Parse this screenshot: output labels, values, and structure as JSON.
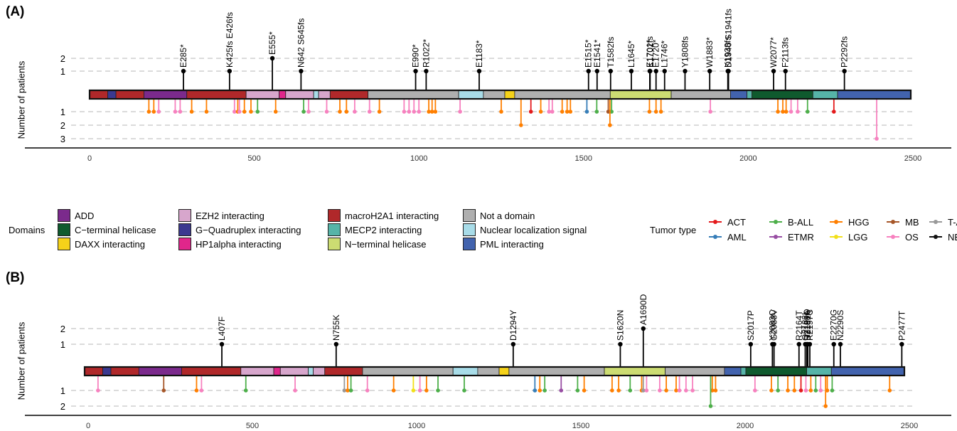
{
  "panels": [
    {
      "label": "(A)",
      "ylabel": "Number of patients",
      "x_ticks": [
        0,
        500,
        1000,
        1500,
        2000,
        2500
      ],
      "up_ticks": [
        1,
        2
      ],
      "down_ticks": [
        1,
        2,
        3
      ],
      "chart_data": {
        "type": "lollipop",
        "xlim": [
          -40,
          2550
        ],
        "above": [
          {
            "pos": 285,
            "n": 1,
            "label": "E285*"
          },
          {
            "pos": 425,
            "n": 1,
            "label": "K425fs E426fs"
          },
          {
            "pos": 555,
            "n": 2,
            "label": "E555*"
          },
          {
            "pos": 642,
            "n": 1,
            "label": "N642 S645fs"
          },
          {
            "pos": 990,
            "n": 1,
            "label": "E990*"
          },
          {
            "pos": 1022,
            "n": 1,
            "label": "R1022*"
          },
          {
            "pos": 1183,
            "n": 1,
            "label": "E1183*"
          },
          {
            "pos": 1515,
            "n": 1,
            "label": "E1515*"
          },
          {
            "pos": 1541,
            "n": 1,
            "label": "E1541*"
          },
          {
            "pos": 1582,
            "n": 1,
            "label": "T1582fs"
          },
          {
            "pos": 1645,
            "n": 1,
            "label": "L1645*"
          },
          {
            "pos": 1701,
            "n": 1,
            "label": "E1701fs"
          },
          {
            "pos": 1702,
            "n": 1,
            "label": "K1702*"
          },
          {
            "pos": 1720,
            "n": 1,
            "label": "E1720*"
          },
          {
            "pos": 1746,
            "n": 1,
            "label": "L1746*"
          },
          {
            "pos": 1808,
            "n": 1,
            "label": "Y1808fs"
          },
          {
            "pos": 1883,
            "n": 1,
            "label": "W1883*"
          },
          {
            "pos": 1938,
            "n": 1,
            "label": "K1938fs"
          },
          {
            "pos": 1940,
            "n": 1,
            "label": "D1940 S1941fs"
          },
          {
            "pos": 2077,
            "n": 1,
            "label": "W2077*"
          },
          {
            "pos": 2113,
            "n": 1,
            "label": "F2113fs"
          },
          {
            "pos": 2292,
            "n": 1,
            "label": "P2292fs"
          }
        ],
        "below": [
          {
            "pos": 180,
            "n": 1,
            "t": "HGG"
          },
          {
            "pos": 195,
            "n": 1,
            "t": "HGG"
          },
          {
            "pos": 210,
            "n": 1,
            "t": "OS"
          },
          {
            "pos": 260,
            "n": 1,
            "t": "OS"
          },
          {
            "pos": 275,
            "n": 1,
            "t": "OS"
          },
          {
            "pos": 310,
            "n": 1,
            "t": "HGG"
          },
          {
            "pos": 355,
            "n": 1,
            "t": "HGG"
          },
          {
            "pos": 440,
            "n": 1,
            "t": "OS"
          },
          {
            "pos": 450,
            "n": 1,
            "t": "HGG"
          },
          {
            "pos": 455,
            "n": 1,
            "t": "OS"
          },
          {
            "pos": 470,
            "n": 1,
            "t": "HGG"
          },
          {
            "pos": 490,
            "n": 1,
            "t": "HGG"
          },
          {
            "pos": 510,
            "n": 1,
            "t": "B-ALL"
          },
          {
            "pos": 565,
            "n": 1,
            "t": "HGG"
          },
          {
            "pos": 650,
            "n": 1,
            "t": "B-ALL"
          },
          {
            "pos": 665,
            "n": 1,
            "t": "OS"
          },
          {
            "pos": 720,
            "n": 1,
            "t": "OS"
          },
          {
            "pos": 760,
            "n": 1,
            "t": "HGG"
          },
          {
            "pos": 780,
            "n": 1,
            "t": "HGG"
          },
          {
            "pos": 805,
            "n": 1,
            "t": "OS"
          },
          {
            "pos": 850,
            "n": 1,
            "t": "OS"
          },
          {
            "pos": 880,
            "n": 1,
            "t": "HGG"
          },
          {
            "pos": 955,
            "n": 1,
            "t": "OS"
          },
          {
            "pos": 970,
            "n": 1,
            "t": "OS"
          },
          {
            "pos": 985,
            "n": 1,
            "t": "OS"
          },
          {
            "pos": 1000,
            "n": 1,
            "t": "OS"
          },
          {
            "pos": 1030,
            "n": 1,
            "t": "HGG"
          },
          {
            "pos": 1040,
            "n": 1,
            "t": "HGG"
          },
          {
            "pos": 1050,
            "n": 1,
            "t": "HGG"
          },
          {
            "pos": 1125,
            "n": 1,
            "t": "OS"
          },
          {
            "pos": 1250,
            "n": 1,
            "t": "HGG"
          },
          {
            "pos": 1310,
            "n": 2,
            "t": "HGG"
          },
          {
            "pos": 1340,
            "n": 1,
            "t": "ACT"
          },
          {
            "pos": 1370,
            "n": 1,
            "t": "HGG"
          },
          {
            "pos": 1395,
            "n": 1,
            "t": "OS"
          },
          {
            "pos": 1405,
            "n": 1,
            "t": "OS"
          },
          {
            "pos": 1435,
            "n": 1,
            "t": "HGG"
          },
          {
            "pos": 1450,
            "n": 1,
            "t": "HGG"
          },
          {
            "pos": 1460,
            "n": 1,
            "t": "HGG"
          },
          {
            "pos": 1510,
            "n": 1,
            "t": "AML"
          },
          {
            "pos": 1540,
            "n": 1,
            "t": "B-ALL"
          },
          {
            "pos": 1575,
            "n": 1,
            "t": "MB"
          },
          {
            "pos": 1585,
            "n": 1,
            "t": "B-ALL"
          },
          {
            "pos": 1580,
            "n": 2,
            "t": "HGG"
          },
          {
            "pos": 1700,
            "n": 1,
            "t": "HGG"
          },
          {
            "pos": 1720,
            "n": 1,
            "t": "HGG"
          },
          {
            "pos": 1735,
            "n": 1,
            "t": "HGG"
          },
          {
            "pos": 1885,
            "n": 1,
            "t": "OS"
          },
          {
            "pos": 2090,
            "n": 1,
            "t": "HGG"
          },
          {
            "pos": 2105,
            "n": 1,
            "t": "HGG"
          },
          {
            "pos": 2115,
            "n": 1,
            "t": "HGG"
          },
          {
            "pos": 2130,
            "n": 1,
            "t": "OS"
          },
          {
            "pos": 2150,
            "n": 1,
            "t": "OS"
          },
          {
            "pos": 2180,
            "n": 1,
            "t": "B-ALL"
          },
          {
            "pos": 2260,
            "n": 1,
            "t": "ACT"
          },
          {
            "pos": 2390,
            "n": 3,
            "t": "OS"
          }
        ]
      }
    },
    {
      "label": "(B)",
      "ylabel": "Number of patients",
      "x_ticks": [
        0,
        500,
        1000,
        1500,
        2000,
        2500
      ],
      "up_ticks": [
        1,
        2
      ],
      "down_ticks": [
        1,
        2
      ],
      "chart_data": {
        "type": "lollipop",
        "xlim": [
          -80,
          2560
        ],
        "above": [
          {
            "pos": 407,
            "n": 1,
            "label": "L407F"
          },
          {
            "pos": 755,
            "n": 1,
            "label": "N755K"
          },
          {
            "pos": 1294,
            "n": 1,
            "label": "D1294Y"
          },
          {
            "pos": 1620,
            "n": 1,
            "label": "S1620N"
          },
          {
            "pos": 1690,
            "n": 2,
            "label": "A1690D"
          },
          {
            "pos": 2017,
            "n": 1,
            "label": "S2017P"
          },
          {
            "pos": 2083,
            "n": 1,
            "label": "Y2083C"
          },
          {
            "pos": 2088,
            "n": 1,
            "label": "G2088V"
          },
          {
            "pos": 2164,
            "n": 1,
            "label": "R2164T"
          },
          {
            "pos": 2183,
            "n": 1,
            "label": "Q2183L"
          },
          {
            "pos": 2188,
            "n": 1,
            "label": "R2188Q"
          },
          {
            "pos": 2191,
            "n": 1,
            "label": "D2191A"
          },
          {
            "pos": 2197,
            "n": 1,
            "label": "R2197C"
          },
          {
            "pos": 2270,
            "n": 1,
            "label": "E2270G"
          },
          {
            "pos": 2290,
            "n": 1,
            "label": "N2290S"
          },
          {
            "pos": 2477,
            "n": 1,
            "label": "P2477T"
          }
        ],
        "below": [
          {
            "pos": 30,
            "n": 1,
            "t": "OS"
          },
          {
            "pos": 230,
            "n": 1,
            "t": "MB"
          },
          {
            "pos": 330,
            "n": 1,
            "t": "HGG"
          },
          {
            "pos": 345,
            "n": 1,
            "t": "OS"
          },
          {
            "pos": 480,
            "n": 1,
            "t": "B-ALL"
          },
          {
            "pos": 630,
            "n": 1,
            "t": "OS"
          },
          {
            "pos": 780,
            "n": 1,
            "t": "T-ALL"
          },
          {
            "pos": 790,
            "n": 1,
            "t": "HGG"
          },
          {
            "pos": 800,
            "n": 1,
            "t": "B-ALL"
          },
          {
            "pos": 850,
            "n": 1,
            "t": "OS"
          },
          {
            "pos": 930,
            "n": 1,
            "t": "HGG"
          },
          {
            "pos": 990,
            "n": 1,
            "t": "LGG"
          },
          {
            "pos": 1010,
            "n": 1,
            "t": "OS"
          },
          {
            "pos": 1030,
            "n": 1,
            "t": "HGG"
          },
          {
            "pos": 1065,
            "n": 1,
            "t": "B-ALL"
          },
          {
            "pos": 1145,
            "n": 1,
            "t": "B-ALL"
          },
          {
            "pos": 1360,
            "n": 1,
            "t": "AML"
          },
          {
            "pos": 1375,
            "n": 1,
            "t": "HGG"
          },
          {
            "pos": 1390,
            "n": 1,
            "t": "B-ALL"
          },
          {
            "pos": 1440,
            "n": 1,
            "t": "ETMR"
          },
          {
            "pos": 1490,
            "n": 1,
            "t": "B-ALL"
          },
          {
            "pos": 1510,
            "n": 1,
            "t": "HGG"
          },
          {
            "pos": 1595,
            "n": 1,
            "t": "HGG"
          },
          {
            "pos": 1615,
            "n": 1,
            "t": "HGG"
          },
          {
            "pos": 1650,
            "n": 1,
            "t": "B-ALL"
          },
          {
            "pos": 1685,
            "n": 1,
            "t": "HGG"
          },
          {
            "pos": 1690,
            "n": 1,
            "t": "T-ALL"
          },
          {
            "pos": 1700,
            "n": 1,
            "t": "OS"
          },
          {
            "pos": 1740,
            "n": 1,
            "t": "OS"
          },
          {
            "pos": 1760,
            "n": 1,
            "t": "HGG"
          },
          {
            "pos": 1790,
            "n": 1,
            "t": "HGG"
          },
          {
            "pos": 1800,
            "n": 1,
            "t": "OS"
          },
          {
            "pos": 1820,
            "n": 1,
            "t": "OS"
          },
          {
            "pos": 1840,
            "n": 1,
            "t": "OS"
          },
          {
            "pos": 1900,
            "n": 1,
            "t": "HGG"
          },
          {
            "pos": 1910,
            "n": 1,
            "t": "HGG"
          },
          {
            "pos": 1895,
            "n": 2,
            "t": "B-ALL"
          },
          {
            "pos": 2030,
            "n": 1,
            "t": "OS"
          },
          {
            "pos": 2080,
            "n": 1,
            "t": "HGG"
          },
          {
            "pos": 2100,
            "n": 1,
            "t": "B-ALL"
          },
          {
            "pos": 2130,
            "n": 1,
            "t": "HGG"
          },
          {
            "pos": 2150,
            "n": 1,
            "t": "HGG"
          },
          {
            "pos": 2170,
            "n": 1,
            "t": "ACT"
          },
          {
            "pos": 2185,
            "n": 1,
            "t": "OS"
          },
          {
            "pos": 2200,
            "n": 1,
            "t": "HGG"
          },
          {
            "pos": 2215,
            "n": 1,
            "t": "B-ALL"
          },
          {
            "pos": 2230,
            "n": 1,
            "t": "OS"
          },
          {
            "pos": 2250,
            "n": 1,
            "t": "HGG"
          },
          {
            "pos": 2265,
            "n": 1,
            "t": "B-ALL"
          },
          {
            "pos": 2245,
            "n": 2,
            "t": "HGG"
          },
          {
            "pos": 2440,
            "n": 1,
            "t": "HGG"
          }
        ]
      }
    }
  ],
  "domains_A": [
    {
      "start": 0,
      "end": 55,
      "d": "macroH2A1 interacting"
    },
    {
      "start": 55,
      "end": 80,
      "d": "G-Quadruplex interacting"
    },
    {
      "start": 80,
      "end": 165,
      "d": "macroH2A1 interacting"
    },
    {
      "start": 165,
      "end": 295,
      "d": "ADD"
    },
    {
      "start": 295,
      "end": 475,
      "d": "macroH2A1 interacting"
    },
    {
      "start": 475,
      "end": 575,
      "d": "EZH2 interacting"
    },
    {
      "start": 575,
      "end": 595,
      "d": "HP1alpha interacting"
    },
    {
      "start": 595,
      "end": 680,
      "d": "EZH2 interacting"
    },
    {
      "start": 680,
      "end": 695,
      "d": "Nuclear localization signal"
    },
    {
      "start": 695,
      "end": 730,
      "d": "EZH2 interacting"
    },
    {
      "start": 730,
      "end": 845,
      "d": "macroH2A1 interacting"
    },
    {
      "start": 845,
      "end": 1120,
      "d": "Not a domain"
    },
    {
      "start": 1120,
      "end": 1195,
      "d": "Nuclear localization signal"
    },
    {
      "start": 1195,
      "end": 1260,
      "d": "Not a domain"
    },
    {
      "start": 1260,
      "end": 1290,
      "d": "DAXX interacting"
    },
    {
      "start": 1290,
      "end": 1580,
      "d": "Not a domain"
    },
    {
      "start": 1580,
      "end": 1765,
      "d": "N-terminal helicase"
    },
    {
      "start": 1765,
      "end": 1945,
      "d": "Not a domain"
    },
    {
      "start": 1945,
      "end": 1995,
      "d": "PML interacting"
    },
    {
      "start": 1995,
      "end": 2010,
      "d": "MECP2 interacting"
    },
    {
      "start": 2010,
      "end": 2195,
      "d": "C-terminal helicase"
    },
    {
      "start": 2195,
      "end": 2270,
      "d": "MECP2 interacting"
    },
    {
      "start": 2270,
      "end": 2492,
      "d": "PML interacting"
    }
  ],
  "domain_legend": {
    "title": "Domains",
    "items": [
      {
        "name": "ADD",
        "color": "#7B2A8C"
      },
      {
        "name": "C−terminal helicase",
        "color": "#0F5A2E"
      },
      {
        "name": "DAXX interacting",
        "color": "#F5D21A"
      },
      {
        "name": "EZH2 interacting",
        "color": "#D7A6CC"
      },
      {
        "name": "G−Quadruplex interacting",
        "color": "#3B3990"
      },
      {
        "name": "HP1alpha interacting",
        "color": "#E0268B"
      },
      {
        "name": "macroH2A1 interacting",
        "color": "#B0282A"
      },
      {
        "name": "MECP2 interacting",
        "color": "#56B4A8"
      },
      {
        "name": "N−terminal helicase",
        "color": "#CCDC72"
      },
      {
        "name": "Not a domain",
        "color": "#AFAFAF"
      },
      {
        "name": "Nuclear localization signal",
        "color": "#A8DCE8"
      },
      {
        "name": "PML interacting",
        "color": "#4263AE"
      }
    ]
  },
  "domain_color_key": {
    "ADD": "#7B2A8C",
    "C-terminal helicase": "#0F5A2E",
    "DAXX interacting": "#F5D21A",
    "EZH2 interacting": "#D7A6CC",
    "G-Quadruplex interacting": "#3B3990",
    "HP1alpha interacting": "#E0268B",
    "macroH2A1 interacting": "#B0282A",
    "MECP2 interacting": "#56B4A8",
    "N-terminal helicase": "#CCDC72",
    "Not a domain": "#AFAFAF",
    "Nuclear localization signal": "#A8DCE8",
    "PML interacting": "#4263AE"
  },
  "tumor_legend": {
    "title": "Tumor type",
    "items": [
      {
        "name": "ACT",
        "color": "#E41A1C"
      },
      {
        "name": "AML",
        "color": "#377EB8"
      },
      {
        "name": "B-ALL",
        "color": "#4DAF4A"
      },
      {
        "name": "ETMR",
        "color": "#984EA3"
      },
      {
        "name": "HGG",
        "color": "#FF7F00"
      },
      {
        "name": "LGG",
        "color": "#F2E01A"
      },
      {
        "name": "MB",
        "color": "#A65628"
      },
      {
        "name": "OS",
        "color": "#F781BF"
      },
      {
        "name": "T-ALL",
        "color": "#999999"
      },
      {
        "name": "NB",
        "color": "#111111"
      }
    ]
  }
}
